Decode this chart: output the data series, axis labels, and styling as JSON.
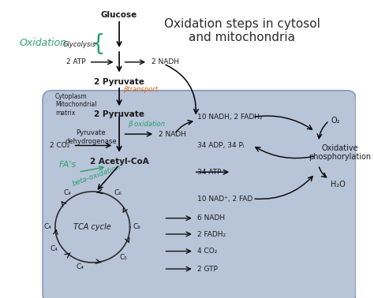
{
  "title": "Oxidation steps in cytosol\nand mitochondria",
  "title_fontsize": 11,
  "bg_color": "#c8cfe0",
  "white_bg": "#ffffff",
  "mitochondria_color": "#b8c4d8",
  "main_text_color": "#2c2c2c",
  "text_colors": {
    "oxidation_green": "#2ca06e",
    "transport_orange": "#d4681a",
    "beta_oxidation_green": "#2ca06e"
  },
  "labels": {
    "glucose": "Glucose",
    "glycolysis": "Glycolysis",
    "oxidation": "Oxidation",
    "atp": "2 ATP",
    "nadh_glyc": "2 NADH",
    "pyruvate1": "2 Pyruvate",
    "transport": "βtransport",
    "pyruvate2": "2 Pyruvate",
    "pyr_dehyd1": "Pyruvate",
    "pyr_dehyd2": "dehydrogenase",
    "oxidation2": "β oxidation",
    "nadh2": "2 NADH",
    "acetyl": "2 Acetyl-CoA",
    "co2": "2 CO₂",
    "tca": "TCA cycle",
    "nadh10": "10 NADH, 2 FADH₂",
    "adp": "34 ADP, 34 Pᵢ",
    "atp34": "34 ATP",
    "nad10": "10 NAD⁺, 2 FAD",
    "o2": "O₂",
    "h2o": "H₂O",
    "ox_phos": "Oxidative\nphosphorylation",
    "nadh6": "6 NADH",
    "fadh2": "2 FADH₂",
    "co2_4": "4 CO₂",
    "gtp": "2 GTP",
    "cytoplasm": "Cytoplasm",
    "mito_matrix": "Mitochondrial\nmatrix",
    "beta_ox": "beta-oxidation",
    "fas": "FA's"
  }
}
